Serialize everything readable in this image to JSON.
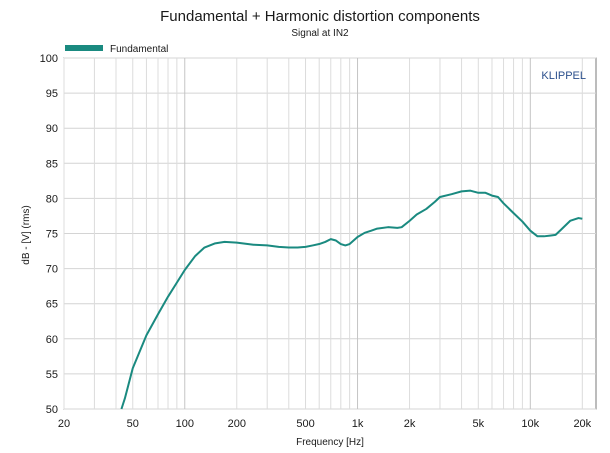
{
  "chart_data": {
    "type": "line",
    "title": "Fundamental + Harmonic distortion components",
    "subtitle": "Signal at IN2",
    "xlabel": "Frequency [Hz]",
    "ylabel": "dB - [V] (rms)",
    "xscale": "log",
    "xlim": [
      20,
      24000
    ],
    "ylim": [
      50,
      100
    ],
    "x_ticks": [
      {
        "value": 20,
        "label": "20"
      },
      {
        "value": 50,
        "label": "50"
      },
      {
        "value": 100,
        "label": "100"
      },
      {
        "value": 200,
        "label": "200"
      },
      {
        "value": 500,
        "label": "500"
      },
      {
        "value": 1000,
        "label": "1k"
      },
      {
        "value": 2000,
        "label": "2k"
      },
      {
        "value": 5000,
        "label": "5k"
      },
      {
        "value": 10000,
        "label": "10k"
      },
      {
        "value": 20000,
        "label": "20k"
      }
    ],
    "y_ticks": [
      50,
      55,
      60,
      65,
      70,
      75,
      80,
      85,
      90,
      95,
      100
    ],
    "grid": true,
    "legend_position": "top-left",
    "brand": "KLIPPEL",
    "brand_color": "#2b4f8c",
    "series": [
      {
        "name": "Fundamental",
        "color": "#1a8a80",
        "x": [
          43,
          45,
          50,
          60,
          70,
          80,
          90,
          100,
          115,
          130,
          150,
          170,
          200,
          250,
          300,
          350,
          400,
          450,
          500,
          550,
          600,
          650,
          700,
          750,
          800,
          850,
          900,
          1000,
          1100,
          1200,
          1300,
          1500,
          1700,
          1800,
          2000,
          2200,
          2500,
          2800,
          3000,
          3500,
          4000,
          4500,
          5000,
          5500,
          6000,
          6500,
          7000,
          8000,
          9000,
          10000,
          11000,
          12000,
          13000,
          14000,
          15000,
          17000,
          19000,
          20000
        ],
        "y": [
          50,
          51.5,
          55.8,
          60.5,
          63.5,
          66,
          68,
          69.8,
          71.8,
          73,
          73.6,
          73.8,
          73.7,
          73.4,
          73.3,
          73.1,
          73.0,
          73.0,
          73.1,
          73.3,
          73.5,
          73.8,
          74.2,
          74.0,
          73.5,
          73.3,
          73.5,
          74.5,
          75.1,
          75.4,
          75.7,
          75.9,
          75.8,
          75.9,
          76.8,
          77.7,
          78.5,
          79.5,
          80.2,
          80.6,
          81.0,
          81.1,
          80.8,
          80.8,
          80.4,
          80.2,
          79.3,
          77.9,
          76.7,
          75.4,
          74.6,
          74.6,
          74.7,
          74.8,
          75.5,
          76.8,
          77.2,
          77.1
        ]
      }
    ]
  }
}
